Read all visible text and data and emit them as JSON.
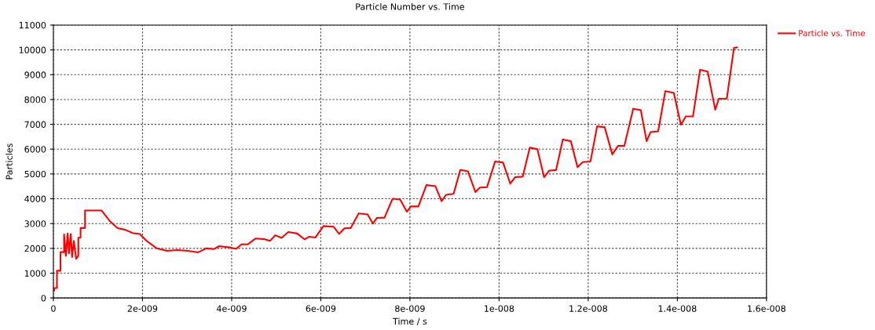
{
  "chart_data": {
    "type": "line",
    "title": "Particle Number vs. Time",
    "xlabel": "Time / s",
    "ylabel": "Particles",
    "xlim": [
      0,
      1.6e-08
    ],
    "xticks": [
      0,
      {
        "value": 2e-09,
        "label": "2e-009"
      },
      {
        "value": 4e-09,
        "label": "4e-009"
      },
      {
        "value": 6e-09,
        "label": "6e-009"
      },
      {
        "value": 8e-09,
        "label": "8e-009"
      },
      {
        "value": 1e-08,
        "label": "1e-008"
      },
      {
        "value": 1.2e-08,
        "label": "1.2e-008"
      },
      {
        "value": 1.4e-08,
        "label": "1.4e-008"
      },
      {
        "value": 1.6e-08,
        "label": "1.6e-008"
      }
    ],
    "ylim": [
      0,
      11000
    ],
    "yticks": [
      0,
      1000,
      2000,
      3000,
      4000,
      5000,
      6000,
      7000,
      8000,
      9000,
      10000,
      11000
    ],
    "grid": true,
    "legend": "top right",
    "marker": "none",
    "line_style": "solid",
    "series": [
      {
        "name": "Particle vs. Time",
        "color": "#ff0000",
        "x": [
          0,
          2e-11,
          2e-11,
          8e-11,
          8e-11,
          1.6e-10,
          1.6e-10,
          2.4e-10,
          2.4e-10,
          2.8e-10,
          3.2e-10,
          3.5e-10,
          3.9e-10,
          4.2e-10,
          4.6e-10,
          5.1e-10,
          5.6e-10,
          5.6e-10,
          6.1e-10,
          6.1e-10,
          7.1e-10,
          7.1e-10,
          1.08e-09,
          1.26e-09,
          1.44e-09,
          1.61e-09,
          1.79e-09,
          1.94e-09,
          2.08e-09,
          2.32e-09,
          2.55e-09,
          2.78e-09,
          3.02e-09,
          3.25e-09,
          3.43e-09,
          3.6e-09,
          3.72e-09,
          3.95e-09,
          4.1e-09,
          4.22e-09,
          4.36e-09,
          4.54e-09,
          4.74e-09,
          4.86e-09,
          4.98e-09,
          5.12e-09,
          5.27e-09,
          5.47e-09,
          5.64e-09,
          5.74e-09,
          5.88e-09,
          6.06e-09,
          6.29e-09,
          6.41e-09,
          6.53e-09,
          6.67e-09,
          6.85e-09,
          7.05e-09,
          7.17e-09,
          7.26e-09,
          7.43e-09,
          7.61e-09,
          7.78e-09,
          7.93e-09,
          8.02e-09,
          8.19e-09,
          8.37e-09,
          8.57e-09,
          8.71e-09,
          8.81e-09,
          8.98e-09,
          9.13e-09,
          9.3e-09,
          9.47e-09,
          9.57e-09,
          9.73e-09,
          9.91e-09,
          1.009e-08,
          1.025e-08,
          1.036e-08,
          1.053e-08,
          1.069e-08,
          1.086e-08,
          1.101e-08,
          1.112e-08,
          1.128e-08,
          1.143e-08,
          1.161e-08,
          1.176e-08,
          1.188e-08,
          1.205e-08,
          1.22e-08,
          1.237e-08,
          1.254e-08,
          1.267e-08,
          1.281e-08,
          1.301e-08,
          1.318e-08,
          1.331e-08,
          1.34e-08,
          1.357e-08,
          1.373e-08,
          1.392e-08,
          1.408e-08,
          1.419e-08,
          1.435e-08,
          1.451e-08,
          1.468e-08,
          1.485e-08,
          1.493e-08,
          1.511e-08,
          1.527e-08,
          1.534e-08
        ],
        "values": [
          300,
          300,
          400,
          400,
          1100,
          1100,
          1850,
          1850,
          2560,
          1700,
          2600,
          1800,
          2580,
          1650,
          2300,
          1580,
          1700,
          2430,
          2430,
          2820,
          2820,
          3530,
          3530,
          3110,
          2820,
          2750,
          2610,
          2580,
          2320,
          2000,
          1900,
          1930,
          1900,
          1840,
          2000,
          1970,
          2090,
          2040,
          1980,
          2160,
          2160,
          2400,
          2370,
          2300,
          2530,
          2420,
          2660,
          2600,
          2360,
          2470,
          2440,
          2900,
          2870,
          2580,
          2810,
          2820,
          3410,
          3370,
          3000,
          3230,
          3240,
          4000,
          3970,
          3480,
          3690,
          3690,
          4550,
          4510,
          3900,
          4160,
          4200,
          5160,
          5110,
          4270,
          4450,
          4470,
          5500,
          5460,
          4610,
          4870,
          4890,
          6060,
          6000,
          4870,
          5130,
          5160,
          6390,
          6320,
          5270,
          5480,
          5500,
          6920,
          6880,
          5790,
          6130,
          6130,
          7630,
          7570,
          6320,
          6690,
          6720,
          8340,
          8270,
          6980,
          7320,
          7320,
          9200,
          9130,
          7590,
          8030,
          8040,
          10080,
          10100
        ]
      }
    ]
  }
}
